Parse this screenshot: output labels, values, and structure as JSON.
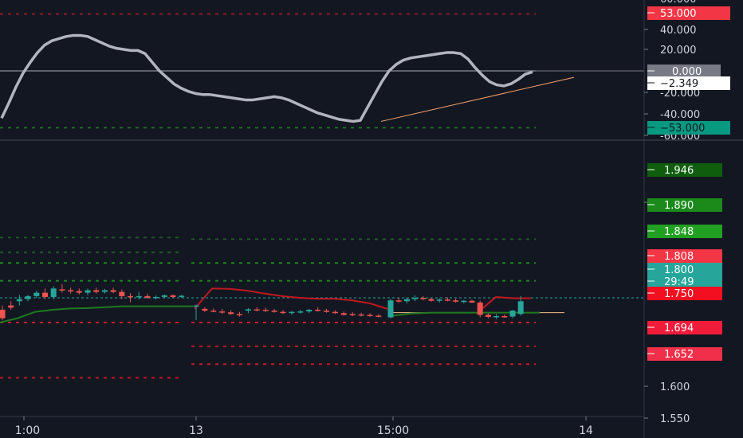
{
  "colors": {
    "background": "#131722",
    "up_candle": "#26a69a",
    "down_candle": "#ef5350",
    "osc_line": "#b2b5be",
    "trend_line": "#f7a16b",
    "red_line": "#c2181f",
    "green_line": "#1e7a1e",
    "level_green": "#1b8a1b",
    "level_red": "#d01c2a",
    "axis_text": "#d1d4dc"
  },
  "chart_data": [
    {
      "type": "line",
      "name": "oscillator-pane",
      "ylim": [
        -60,
        60
      ],
      "y_ticks": [
        "60.000",
        "40.000",
        "20.000",
        "-20.000",
        "-40.000",
        "-60.000"
      ],
      "levels": [
        53,
        0,
        -53
      ],
      "series": [
        {
          "values": [
            -44,
            -30,
            -15,
            -2,
            8,
            17,
            24,
            28,
            30,
            32,
            33,
            33,
            32,
            29,
            26,
            23,
            21,
            20,
            19,
            19,
            16,
            8,
            0,
            -6,
            -12,
            -16,
            -19,
            -21,
            -22,
            -22,
            -23,
            -24,
            -25,
            -26,
            -27,
            -27,
            -26,
            -25,
            -24,
            -25,
            -27,
            -30,
            -33,
            -36,
            -39,
            -41,
            -43,
            -45,
            -46,
            -47,
            -46,
            -34,
            -22,
            -10,
            0,
            6,
            10,
            12,
            13,
            14,
            15,
            16,
            17,
            17,
            16,
            11,
            3,
            -4,
            -10,
            -13,
            -14,
            -12,
            -8,
            -3,
            -1
          ]
        }
      ],
      "trendline": [
        [
          -46,
          -47
        ],
        [
          0,
          -3
        ]
      ],
      "badges": [
        {
          "text": "53.000",
          "bg": "#f23645",
          "fg": "#ffffff",
          "value": 53
        },
        {
          "text": "0.000",
          "bg": "#787b86",
          "fg": "#ffffff",
          "value": 0
        },
        {
          "text": "−2.349",
          "bg": "#ffffff",
          "fg": "#131722",
          "value": -2.349
        },
        {
          "text": "−53.000",
          "bg": "#089981",
          "fg": "#131722",
          "value": -53
        }
      ]
    },
    {
      "type": "candlestick",
      "name": "price-pane",
      "ylim": [
        1.545,
        1.968
      ],
      "y_ticks": [
        "1.900",
        "1.600",
        "1.550"
      ],
      "x_ticks": [
        "21:00",
        "13",
        "15:00",
        "14"
      ],
      "candles": [
        [
          1.78,
          1.79,
          1.755,
          1.76
        ],
        [
          1.79,
          1.8,
          1.78,
          1.785
        ],
        [
          1.8,
          1.815,
          1.79,
          1.805
        ],
        [
          1.805,
          1.815,
          1.8,
          1.812
        ],
        [
          1.812,
          1.825,
          1.808,
          1.82
        ],
        [
          1.82,
          1.83,
          1.805,
          1.81
        ],
        [
          1.81,
          1.835,
          1.805,
          1.83
        ],
        [
          1.828,
          1.84,
          1.82,
          1.826
        ],
        [
          1.826,
          1.832,
          1.818,
          1.824
        ],
        [
          1.824,
          1.83,
          1.816,
          1.82
        ],
        [
          1.82,
          1.83,
          1.814,
          1.826
        ],
        [
          1.826,
          1.832,
          1.818,
          1.822
        ],
        [
          1.822,
          1.829,
          1.818,
          1.826
        ],
        [
          1.826,
          1.832,
          1.819,
          1.822
        ],
        [
          1.822,
          1.828,
          1.805,
          1.812
        ],
        [
          1.812,
          1.819,
          1.798,
          1.81
        ],
        [
          1.81,
          1.822,
          1.804,
          1.812
        ],
        [
          1.812,
          1.818,
          1.806,
          1.808
        ],
        [
          1.808,
          1.814,
          1.804,
          1.81
        ],
        [
          1.81,
          1.816,
          1.807,
          1.814
        ],
        [
          1.814,
          1.816,
          1.808,
          1.81
        ],
        [
          1.81,
          1.815,
          1.808,
          1.813
        ],
        [
          1.788,
          1.792,
          1.756,
          1.79
        ],
        [
          1.782,
          1.786,
          1.775,
          1.778
        ],
        [
          1.778,
          1.783,
          1.774,
          1.776
        ],
        [
          1.776,
          1.782,
          1.77,
          1.774
        ],
        [
          1.774,
          1.779,
          1.768,
          1.77
        ],
        [
          1.77,
          1.775,
          1.764,
          1.768
        ],
        [
          1.778,
          1.784,
          1.772,
          1.781
        ],
        [
          1.781,
          1.786,
          1.776,
          1.78
        ],
        [
          1.78,
          1.785,
          1.775,
          1.778
        ],
        [
          1.778,
          1.782,
          1.773,
          1.775
        ],
        [
          1.775,
          1.779,
          1.77,
          1.772
        ],
        [
          1.772,
          1.777,
          1.768,
          1.775
        ],
        [
          1.775,
          1.78,
          1.771,
          1.776
        ],
        [
          1.776,
          1.782,
          1.772,
          1.78
        ],
        [
          1.78,
          1.786,
          1.776,
          1.778
        ],
        [
          1.778,
          1.782,
          1.773,
          1.775
        ],
        [
          1.775,
          1.779,
          1.77,
          1.772
        ],
        [
          1.772,
          1.776,
          1.766,
          1.768
        ],
        [
          1.77,
          1.774,
          1.765,
          1.769
        ],
        [
          1.769,
          1.773,
          1.764,
          1.768
        ],
        [
          1.768,
          1.772,
          1.763,
          1.766
        ],
        [
          1.766,
          1.77,
          1.762,
          1.765
        ],
        [
          1.762,
          1.806,
          1.76,
          1.802
        ],
        [
          1.802,
          1.808,
          1.796,
          1.8
        ],
        [
          1.8,
          1.808,
          1.795,
          1.805
        ],
        [
          1.805,
          1.814,
          1.8,
          1.808
        ],
        [
          1.808,
          1.812,
          1.802,
          1.805
        ],
        [
          1.805,
          1.808,
          1.799,
          1.801
        ],
        [
          1.801,
          1.807,
          1.797,
          1.804
        ],
        [
          1.804,
          1.809,
          1.8,
          1.802
        ],
        [
          1.802,
          1.806,
          1.797,
          1.799
        ],
        [
          1.799,
          1.803,
          1.795,
          1.801
        ],
        [
          1.801,
          1.804,
          1.796,
          1.797
        ],
        [
          1.797,
          1.801,
          1.762,
          1.768
        ],
        [
          1.768,
          1.772,
          1.76,
          1.763
        ],
        [
          1.763,
          1.77,
          1.758,
          1.765
        ],
        [
          1.765,
          1.769,
          1.761,
          1.762
        ],
        [
          1.764,
          1.78,
          1.76,
          1.778
        ],
        [
          1.77,
          1.812,
          1.766,
          1.8
        ]
      ],
      "red_line": [
        [
          1.782,
          1.83,
          1.829,
          1.825,
          1.818,
          1.812,
          1.808,
          1.806,
          1.806,
          1.802,
          1.795,
          1.782
        ],
        [
          1.775,
          1.81,
          1.807,
          1.807
        ]
      ],
      "green_line": [
        [
          1.75,
          1.76,
          1.775,
          1.78,
          1.783,
          1.784,
          1.786,
          1.788,
          1.788,
          1.788,
          1.788,
          1.788
        ],
        [
          1.765,
          1.771,
          1.773,
          1.773,
          1.773,
          1.773,
          1.773,
          1.773
        ]
      ],
      "level_lines": [
        {
          "value": 1.95,
          "color": "#1b5e20"
        },
        {
          "value": 1.915,
          "color": "#1b5e20"
        },
        {
          "value": 1.946,
          "color": "#1b5e20"
        },
        {
          "value": 1.89,
          "color": "#1b8a1b"
        },
        {
          "value": 1.848,
          "color": "#1b8a1b"
        },
        {
          "value": 1.75,
          "color": "#d01c2a"
        },
        {
          "value": 1.694,
          "color": "#c2181f"
        },
        {
          "value": 1.652,
          "color": "#c2181f"
        },
        {
          "value": 1.62,
          "color": "#c2181f"
        }
      ],
      "current_price": 1.808,
      "badges": [
        {
          "text": "1.946",
          "bg": "#0e5e0e",
          "fg": "#ffffff",
          "value": 1.946
        },
        {
          "text": "1.890",
          "bg": "#1b8a1b",
          "fg": "#ffffff",
          "value": 1.89
        },
        {
          "text": "1.848",
          "bg": "#22a022",
          "fg": "#ffffff",
          "value": 1.848
        },
        {
          "text": "1.808",
          "bg": "#f23645",
          "fg": "#ffffff",
          "value": 1.808
        },
        {
          "text": "1.800",
          "bg": "#26a69a",
          "fg": "#ffffff",
          "value": 1.8
        },
        {
          "text": "29:49",
          "bg": "#26a69a",
          "fg": "#ffffff",
          "value": 1.785
        },
        {
          "text": "1.750",
          "bg": "#f20f1f",
          "fg": "#ffffff",
          "value": 1.75
        },
        {
          "text": "1.694",
          "bg": "#f01c3a",
          "fg": "#ffffff",
          "value": 1.694
        },
        {
          "text": "1.652",
          "bg": "#f0304a",
          "fg": "#ffffff",
          "value": 1.652
        }
      ]
    }
  ]
}
